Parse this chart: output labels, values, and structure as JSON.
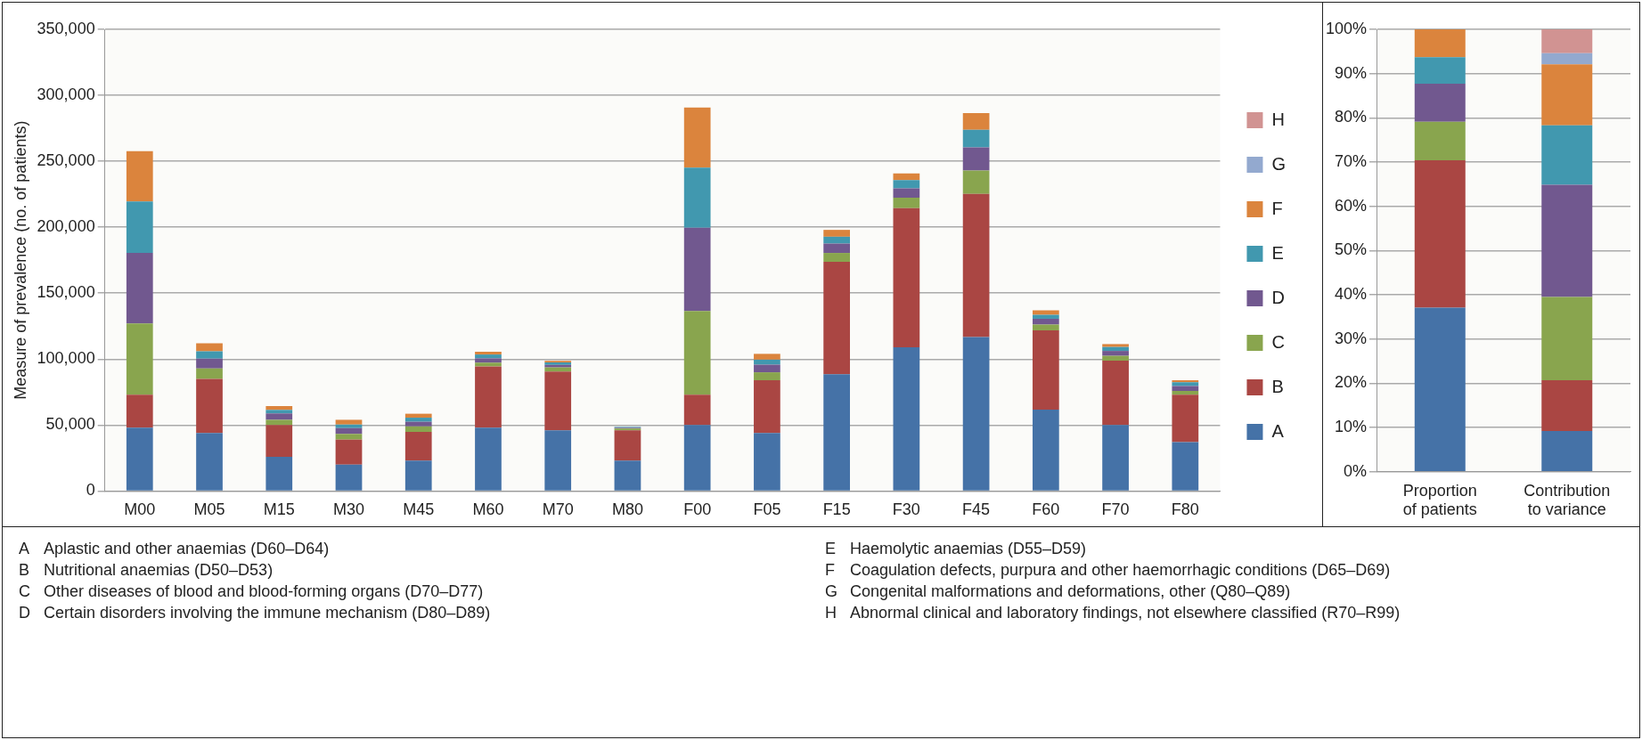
{
  "chart_data": [
    {
      "type": "bar",
      "stacked": true,
      "ylabel": "Measure of prevalence (no. of patients)",
      "categories": [
        "M00",
        "M05",
        "M15",
        "M30",
        "M45",
        "M60",
        "M70",
        "M80",
        "F00",
        "F05",
        "F15",
        "F30",
        "F45",
        "F60",
        "F70",
        "F80"
      ],
      "series": [
        {
          "name": "A",
          "color": "#4572a7",
          "values": [
            48000,
            44000,
            26000,
            20000,
            23000,
            48000,
            46000,
            23000,
            50000,
            44000,
            88500,
            109000,
            116700,
            61700,
            50000,
            37000
          ]
        },
        {
          "name": "B",
          "color": "#aa4643",
          "values": [
            25000,
            41000,
            24000,
            19000,
            21800,
            46500,
            44600,
            23000,
            23000,
            40000,
            85300,
            105400,
            108600,
            60100,
            48800,
            36000
          ]
        },
        {
          "name": "C",
          "color": "#89a54e",
          "values": [
            54000,
            8000,
            4000,
            4300,
            4200,
            2800,
            3100,
            1400,
            63400,
            6000,
            6700,
            8000,
            17700,
            4400,
            3700,
            2900
          ]
        },
        {
          "name": "D",
          "color": "#71588f",
          "values": [
            53500,
            7400,
            4800,
            4400,
            3500,
            3300,
            1900,
            600,
            63200,
            5800,
            7100,
            7100,
            17500,
            4400,
            3700,
            3700
          ]
        },
        {
          "name": "E",
          "color": "#4198af",
          "values": [
            39000,
            5600,
            2700,
            2700,
            3100,
            2900,
            1900,
            600,
            45600,
            3800,
            5200,
            6300,
            13300,
            3000,
            3000,
            2800
          ]
        },
        {
          "name": "F",
          "color": "#db843d",
          "values": [
            38200,
            6000,
            2900,
            3600,
            3000,
            2100,
            1200,
            null,
            45600,
            4400,
            5200,
            5000,
            12800,
            3400,
            2200,
            1600
          ]
        },
        {
          "name": "G",
          "color": "#93a9cf",
          "values": [
            0,
            0,
            0,
            0,
            0,
            0,
            0,
            0,
            0,
            0,
            0,
            0,
            0,
            0,
            0,
            0
          ]
        },
        {
          "name": "H",
          "color": "#d19392",
          "values": [
            0,
            0,
            0,
            0,
            0,
            0,
            0,
            0,
            0,
            0,
            0,
            0,
            0,
            0,
            0,
            0
          ]
        }
      ],
      "ylim": [
        0,
        350000
      ],
      "yticks": [
        {
          "value": 0,
          "label": "0"
        },
        {
          "value": 50000,
          "label": "50,000"
        },
        {
          "value": 100000,
          "label": "100,000"
        },
        {
          "value": 150000,
          "label": "150,000"
        },
        {
          "value": 200000,
          "label": "200,000"
        },
        {
          "value": 250000,
          "label": "250,000"
        },
        {
          "value": 300000,
          "label": "300,000"
        },
        {
          "value": 350000,
          "label": "350,000"
        }
      ],
      "grid": "y",
      "legend": "right",
      "annotations": [
        "A Aplastic and other anaemias (D60–D64)",
        "B Nutritional anaemias (D50–D53)",
        "C Other diseases of blood and blood-forming organs (D70–D77)",
        "D Certain disorders involving the immune mechanism (D80–D89)",
        "E Haemolytic anaemias (D55–D59)",
        "F Coagulation defects, purpura and other haemorrhagic conditions (D65–D69)",
        "G Congenital malformations and deformations, other (Q80–Q89)",
        "H Abnormal clinical and laboratory findings, not elsewhere classified (R70–R99)"
      ]
    },
    {
      "type": "bar",
      "stacked": true,
      "categories": [
        "Proportion of patients",
        "Contribution to variance"
      ],
      "series": [
        {
          "color": "#4572a7",
          "values": [
            37.1,
            9.2
          ]
        },
        {
          "color": "#aa4643",
          "values": [
            33.3,
            11.5
          ]
        },
        {
          "color": "#89a54e",
          "values": [
            8.7,
            18.8
          ]
        },
        {
          "color": "#71588f",
          "values": [
            8.6,
            25.4
          ]
        },
        {
          "color": "#4198af",
          "values": [
            6.0,
            13.4
          ]
        },
        {
          "color": "#db843d",
          "values": [
            6.3,
            13.8
          ]
        },
        {
          "color": "#93a9cf",
          "values": [
            0,
            2.5
          ]
        },
        {
          "color": "#d19392",
          "values": [
            0,
            5.4
          ]
        }
      ],
      "ylim": [
        0,
        100
      ],
      "yticks": [
        {
          "value": 0,
          "label": "0%"
        },
        {
          "value": 10,
          "label": "10%"
        },
        {
          "value": 20,
          "label": "20%"
        },
        {
          "value": 30,
          "label": "30%"
        },
        {
          "value": 40,
          "label": "40%"
        },
        {
          "value": 50,
          "label": "50%"
        },
        {
          "value": 60,
          "label": "60%"
        },
        {
          "value": 70,
          "label": "70%"
        },
        {
          "value": 80,
          "label": "80%"
        },
        {
          "value": 90,
          "label": "90%"
        },
        {
          "value": 100,
          "label": "100%"
        }
      ],
      "grid": "y"
    }
  ]
}
